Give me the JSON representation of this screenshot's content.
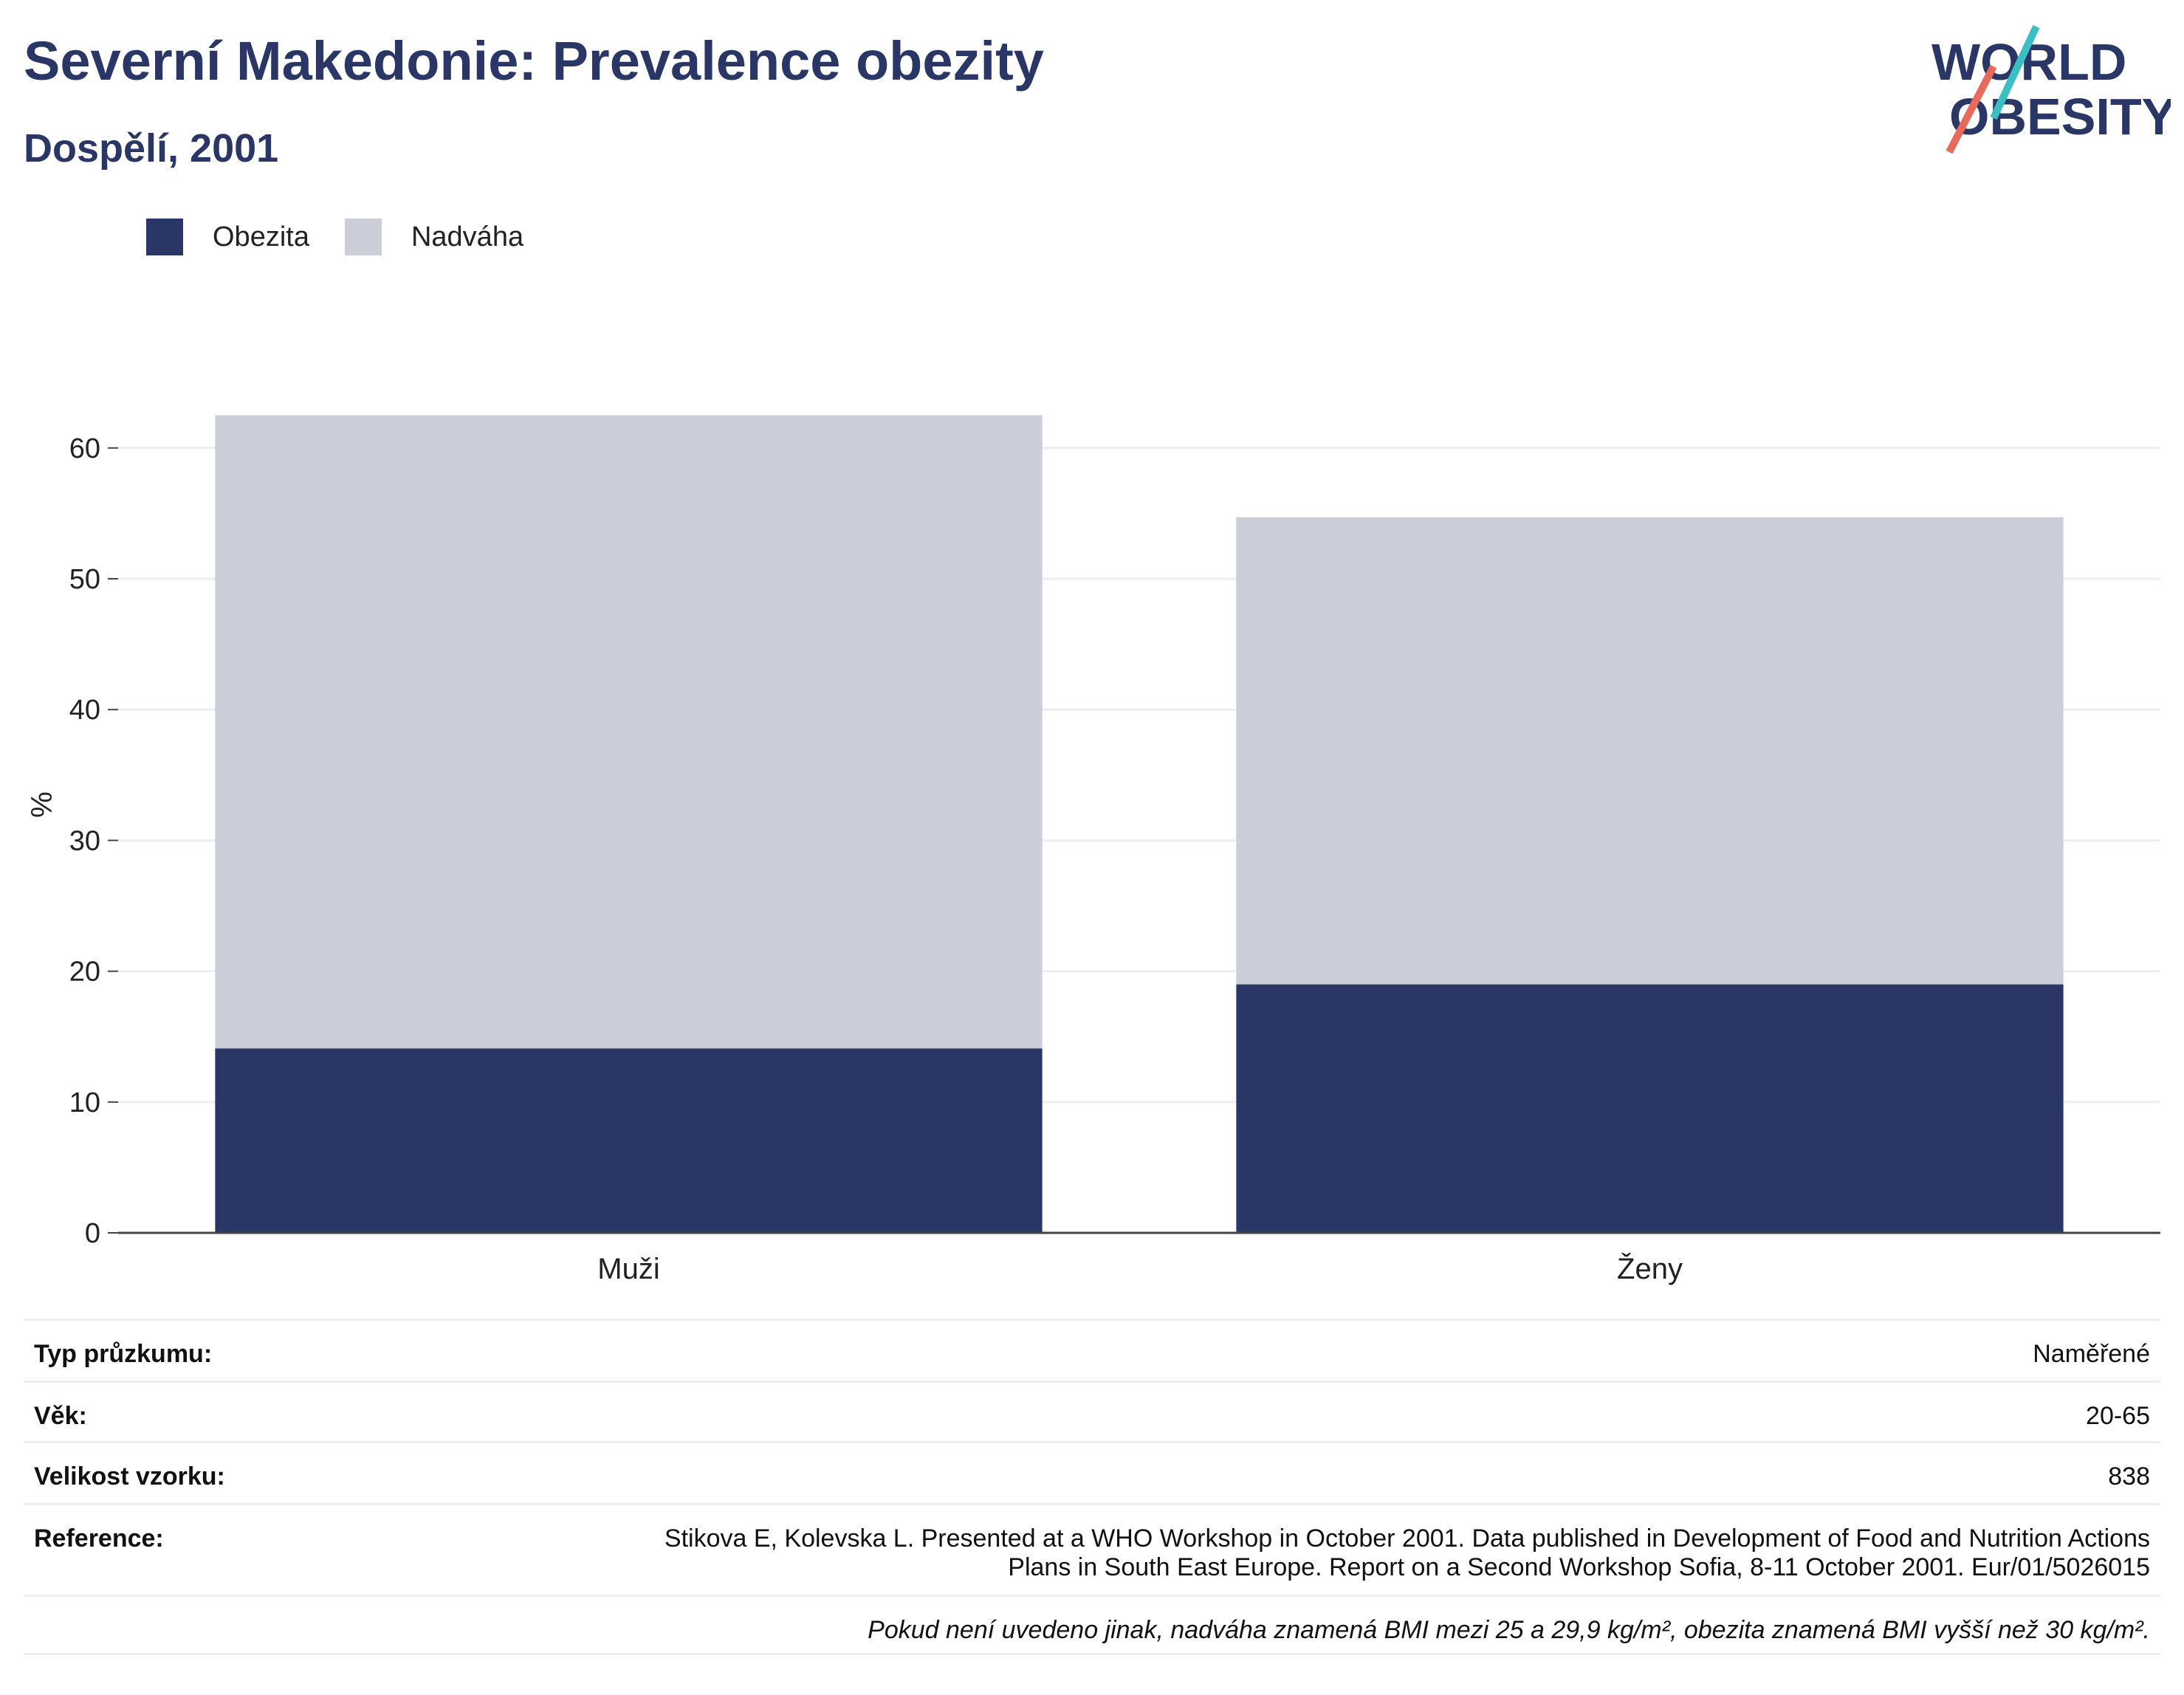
{
  "header": {
    "title": "Severní Makedonie: Prevalence obezity",
    "subtitle": "Dospělí, 2001"
  },
  "logo": {
    "line1": "WORLD",
    "line2": "OBESITY",
    "name": "world-obesity-logo"
  },
  "legend": [
    {
      "label": "Obezita",
      "color": "#2a3666"
    },
    {
      "label": "Nadváha",
      "color": "#cbcdd8"
    }
  ],
  "chart_data": {
    "type": "bar",
    "stacked": true,
    "categories": [
      "Muži",
      "Ženy"
    ],
    "series": [
      {
        "name": "Obezita",
        "values": [
          14.1,
          19.0
        ],
        "color": "#2a3666"
      },
      {
        "name": "Nadváha",
        "values": [
          48.4,
          35.7
        ],
        "color": "#cbcdd8"
      }
    ],
    "ylabel": "%",
    "ylim": [
      0,
      65
    ],
    "yticks": [
      0,
      10,
      20,
      30,
      40,
      50,
      60
    ],
    "grid": true,
    "legend_position": "top-left"
  },
  "info": {
    "survey_type_label": "Typ průzkumu:",
    "survey_type_value": "Naměřené",
    "age_label": "Věk:",
    "age_value": "20-65",
    "sample_label": "Velikost vzorku:",
    "sample_value": "838",
    "reference_label": "Reference:",
    "reference_line1": "Stikova E, Kolevska L. Presented at a WHO Workshop in October 2001. Data published in Development of Food and Nutrition Actions",
    "reference_line2": "Plans in South East Europe. Report on a Second Workshop Sofia, 8-11 October 2001. Eur/01/5026015",
    "footnote": "Pokud není uvedeno jinak, nadváha znamená BMI mezi 25 a 29,9 kg/m², obezita znamená BMI vyšší než 30 kg/m²."
  }
}
